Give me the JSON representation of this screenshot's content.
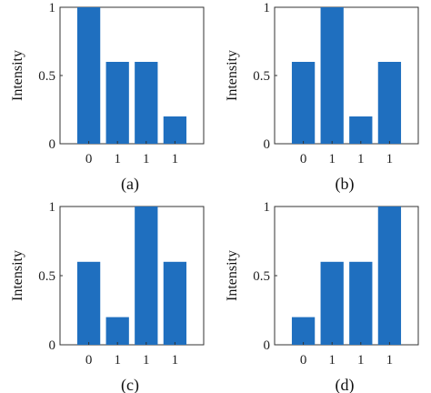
{
  "chart_data": [
    {
      "type": "bar",
      "panel_label": "(a)",
      "ylabel": "Intensity",
      "categories": [
        "0",
        "1",
        "1",
        "1"
      ],
      "values": [
        1.0,
        0.6,
        0.6,
        0.2
      ],
      "ylim": [
        0,
        1
      ],
      "yticks": [
        "0",
        "0.5",
        "1"
      ],
      "bar_color": "#1f6fbf",
      "grid": false
    },
    {
      "type": "bar",
      "panel_label": "(b)",
      "ylabel": "Intensity",
      "categories": [
        "0",
        "1",
        "1",
        "1"
      ],
      "values": [
        0.6,
        1.0,
        0.2,
        0.6
      ],
      "ylim": [
        0,
        1
      ],
      "yticks": [
        "0",
        "0.5",
        "1"
      ],
      "bar_color": "#1f6fbf",
      "grid": false
    },
    {
      "type": "bar",
      "panel_label": "(c)",
      "ylabel": "Intensity",
      "categories": [
        "0",
        "1",
        "1",
        "1"
      ],
      "values": [
        0.6,
        0.2,
        1.0,
        0.6
      ],
      "ylim": [
        0,
        1
      ],
      "yticks": [
        "0",
        "0.5",
        "1"
      ],
      "bar_color": "#1f6fbf",
      "grid": false
    },
    {
      "type": "bar",
      "panel_label": "(d)",
      "ylabel": "Intensity",
      "categories": [
        "0",
        "1",
        "1",
        "1"
      ],
      "values": [
        0.2,
        0.6,
        0.6,
        1.0
      ],
      "ylim": [
        0,
        1
      ],
      "yticks": [
        "0",
        "0.5",
        "1"
      ],
      "bar_color": "#1f6fbf",
      "grid": false
    }
  ]
}
